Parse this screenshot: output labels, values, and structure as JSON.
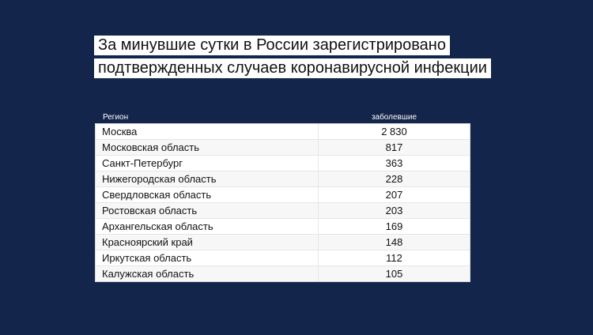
{
  "title": {
    "line1": "За минувшие сутки в России зарегистрировано",
    "line2": "подтвержденных случаев коронавирусной инфекции"
  },
  "table": {
    "headers": {
      "region": "Регион",
      "value": "заболевшие"
    },
    "rows": [
      {
        "region": "Москва",
        "value": "2 830"
      },
      {
        "region": "Московская область",
        "value": "817"
      },
      {
        "region": "Санкт-Петербург",
        "value": "363"
      },
      {
        "region": "Нижегородская область",
        "value": "228"
      },
      {
        "region": "Свердловская область",
        "value": "207"
      },
      {
        "region": "Ростовская область",
        "value": "203"
      },
      {
        "region": "Архангельская область",
        "value": "169"
      },
      {
        "region": "Красноярский край",
        "value": "148"
      },
      {
        "region": "Иркутская область",
        "value": "112"
      },
      {
        "region": "Калужская область",
        "value": "105"
      }
    ]
  },
  "colors": {
    "background": "#13254a",
    "title_bg": "#ffffff",
    "table_bg": "#ffffff"
  }
}
